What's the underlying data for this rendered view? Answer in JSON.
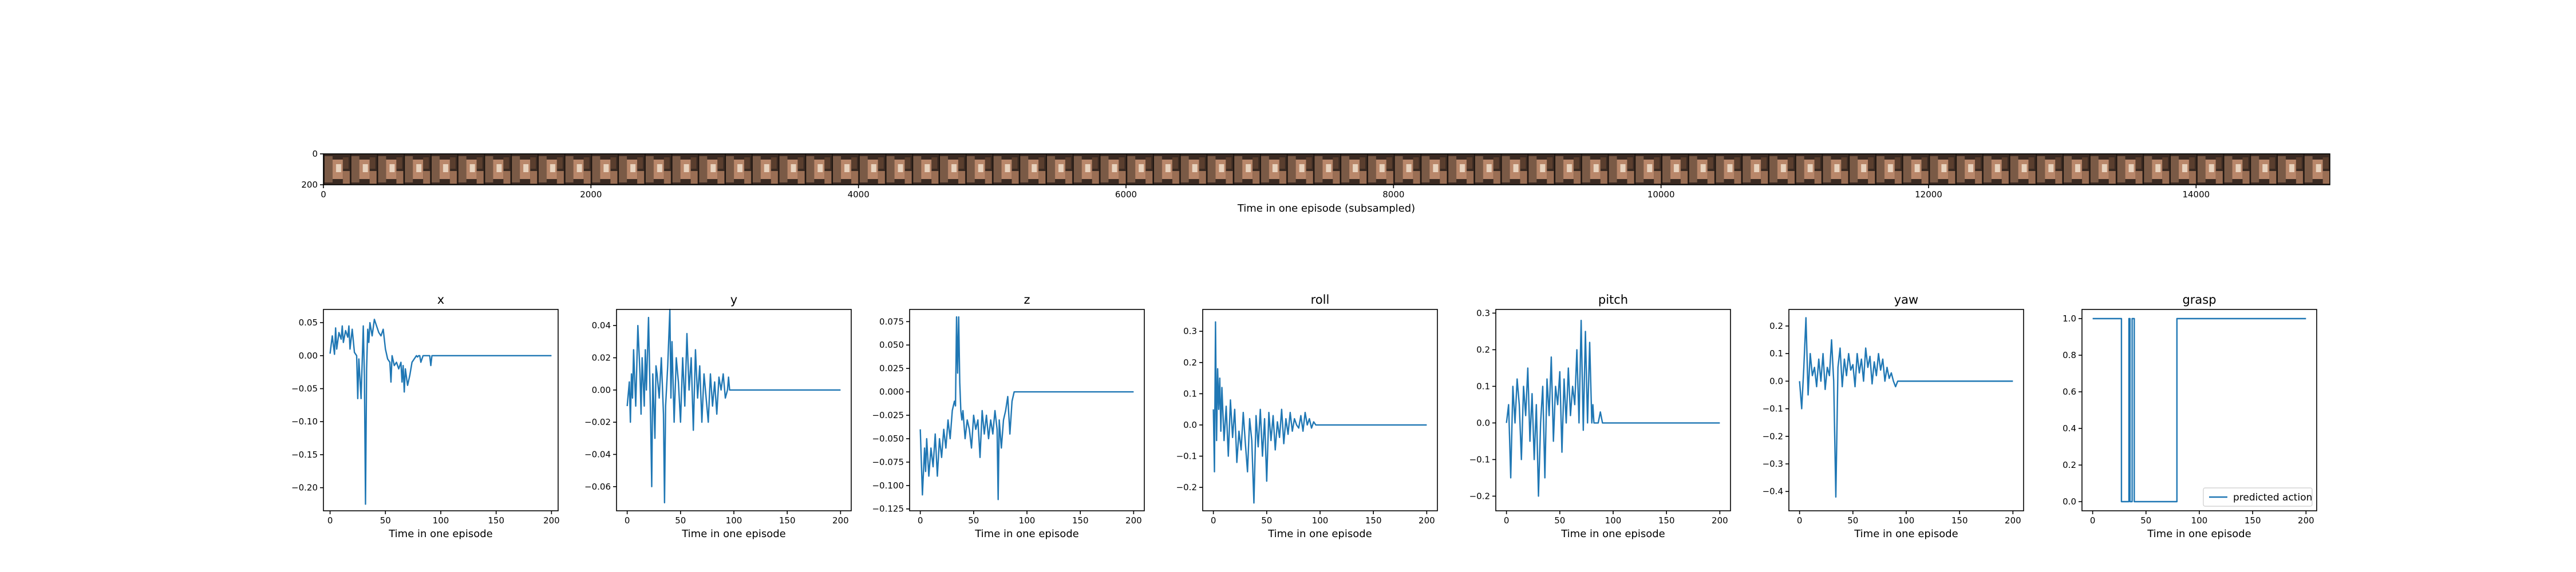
{
  "chart_data": [
    {
      "id": "frames",
      "type": "image-strip",
      "xlabel": "Time in one episode (subsampled)",
      "ylabel": "",
      "xlim": [
        0,
        15000
      ],
      "ylim": [
        200,
        0
      ],
      "xticks": [
        0,
        2000,
        4000,
        6000,
        8000,
        10000,
        12000,
        14000
      ],
      "yticks": [
        0,
        200
      ],
      "frame_count": 75,
      "frame_width": 200,
      "frame_colors": {
        "dark": "#2a1f1a",
        "mid": "#6b4a36",
        "light": "#b9876a",
        "highlight": "#e8d2bd"
      }
    },
    {
      "id": "x",
      "type": "line",
      "title": "x",
      "xlabel": "Time in one episode",
      "ylabel": "",
      "xlim": [
        -6,
        206
      ],
      "ylim": [
        -0.235,
        0.07
      ],
      "xticks": [
        0,
        50,
        100,
        150,
        200
      ],
      "yticks": [
        -0.2,
        -0.15,
        -0.1,
        -0.05,
        0.0,
        0.05
      ],
      "ytick_labels": [
        "−0.20",
        "−0.15",
        "−0.10",
        "−0.05",
        "0.00",
        "0.05"
      ],
      "x": [
        0,
        2,
        4,
        5,
        6,
        8,
        10,
        11,
        12,
        14,
        16,
        17,
        18,
        20,
        22,
        24,
        25,
        26,
        28,
        30,
        31,
        32,
        33,
        34,
        35,
        36,
        38,
        40,
        42,
        44,
        46,
        48,
        50,
        52,
        54,
        55,
        56,
        58,
        60,
        62,
        64,
        65,
        66,
        67,
        68,
        70,
        72,
        74,
        76,
        78,
        79,
        80,
        81,
        82,
        84,
        86,
        88,
        90,
        91,
        92,
        200
      ],
      "y": [
        0.003,
        0.03,
        0.002,
        0.042,
        0.01,
        0.035,
        0.025,
        0.045,
        0.02,
        0.038,
        0.028,
        0.045,
        0.01,
        0.04,
        0.005,
        0.0,
        -0.065,
        -0.005,
        -0.065,
        0.045,
        -0.03,
        -0.225,
        -0.02,
        0.04,
        0.02,
        0.05,
        0.03,
        0.055,
        0.045,
        0.035,
        0.03,
        0.04,
        0.01,
        -0.005,
        -0.01,
        -0.04,
        0.0,
        -0.015,
        -0.01,
        -0.02,
        -0.01,
        -0.04,
        -0.015,
        -0.055,
        -0.02,
        -0.045,
        -0.03,
        -0.01,
        -0.005,
        0.0,
        -0.002,
        0.0,
        0.0,
        -0.01,
        0.0,
        0.0,
        0.0,
        0.0,
        -0.015,
        0.0,
        0.0
      ],
      "color": "#1f77b4"
    },
    {
      "id": "y",
      "type": "line",
      "title": "y",
      "xlabel": "Time in one episode",
      "ylabel": "",
      "xlim": [
        -10,
        210
      ],
      "ylim": [
        -0.075,
        0.05
      ],
      "xticks": [
        0,
        50,
        100,
        150,
        200
      ],
      "yticks": [
        -0.06,
        -0.04,
        -0.02,
        0.0,
        0.02,
        0.04
      ],
      "ytick_labels": [
        "−0.06",
        "−0.04",
        "−0.02",
        "0.00",
        "0.02",
        "0.04"
      ],
      "x": [
        0,
        2,
        3,
        4,
        5,
        6,
        8,
        10,
        12,
        13,
        14,
        16,
        17,
        18,
        20,
        22,
        23,
        24,
        26,
        27,
        28,
        30,
        32,
        34,
        35,
        36,
        38,
        40,
        41,
        42,
        44,
        46,
        48,
        50,
        52,
        54,
        56,
        58,
        60,
        62,
        64,
        66,
        68,
        70,
        72,
        74,
        76,
        78,
        80,
        82,
        84,
        86,
        88,
        90,
        92,
        94,
        95,
        96,
        200
      ],
      "y": [
        -0.01,
        0.005,
        -0.02,
        0.01,
        -0.005,
        0.025,
        -0.01,
        0.04,
        0.01,
        -0.015,
        0.02,
        -0.01,
        0.025,
        0.0,
        0.045,
        -0.02,
        -0.06,
        0.01,
        -0.03,
        0.015,
        0.01,
        -0.005,
        0.02,
        -0.015,
        -0.07,
        -0.01,
        0.015,
        0.05,
        -0.005,
        0.03,
        -0.02,
        0.02,
        0.005,
        -0.02,
        0.02,
        -0.01,
        0.035,
        0.0,
        0.02,
        -0.025,
        0.025,
        -0.005,
        0.015,
        -0.02,
        0.01,
        -0.005,
        -0.02,
        0.01,
        -0.01,
        0.005,
        -0.015,
        0.008,
        0.0,
        0.01,
        -0.005,
        0.0,
        0.008,
        0.0,
        0.0
      ],
      "color": "#1f77b4"
    },
    {
      "id": "z",
      "type": "line",
      "title": "z",
      "xlabel": "Time in one episode",
      "ylabel": "",
      "xlim": [
        -10,
        210
      ],
      "ylim": [
        -0.127,
        0.088
      ],
      "xticks": [
        0,
        50,
        100,
        150,
        200
      ],
      "yticks": [
        -0.125,
        -0.1,
        -0.075,
        -0.05,
        -0.025,
        0.0,
        0.025,
        0.05,
        0.075
      ],
      "ytick_labels": [
        "−0.125",
        "−0.100",
        "−0.075",
        "−0.050",
        "−0.025",
        "0.000",
        "0.025",
        "0.050",
        "0.075"
      ],
      "x": [
        0,
        2,
        4,
        5,
        6,
        8,
        10,
        12,
        14,
        16,
        18,
        20,
        22,
        24,
        26,
        28,
        30,
        32,
        33,
        34,
        35,
        36,
        37,
        38,
        39,
        40,
        42,
        44,
        46,
        48,
        50,
        52,
        54,
        56,
        58,
        60,
        62,
        64,
        66,
        68,
        70,
        72,
        73,
        74,
        76,
        78,
        80,
        82,
        84,
        86,
        88,
        90,
        92,
        200
      ],
      "y": [
        -0.04,
        -0.11,
        -0.06,
        -0.085,
        -0.05,
        -0.09,
        -0.06,
        -0.08,
        -0.045,
        -0.09,
        -0.05,
        -0.07,
        -0.04,
        -0.06,
        -0.03,
        -0.05,
        -0.02,
        -0.01,
        -0.015,
        0.08,
        0.02,
        0.08,
        0.01,
        -0.02,
        -0.03,
        -0.02,
        -0.05,
        -0.03,
        -0.04,
        -0.06,
        -0.025,
        -0.04,
        -0.03,
        -0.07,
        -0.02,
        -0.045,
        -0.025,
        -0.05,
        -0.03,
        -0.045,
        -0.02,
        -0.04,
        -0.115,
        -0.03,
        -0.06,
        -0.03,
        -0.02,
        -0.005,
        -0.045,
        -0.01,
        0.0,
        0.0,
        0.0,
        0.0
      ],
      "color": "#1f77b4"
    },
    {
      "id": "roll",
      "type": "line",
      "title": "roll",
      "xlabel": "Time in one episode",
      "ylabel": "",
      "xlim": [
        -10,
        210
      ],
      "ylim": [
        -0.275,
        0.37
      ],
      "xticks": [
        0,
        50,
        100,
        150,
        200
      ],
      "yticks": [
        -0.2,
        -0.1,
        0.0,
        0.1,
        0.2,
        0.3
      ],
      "ytick_labels": [
        "−0.2",
        "−0.1",
        "0.0",
        "0.1",
        "0.2",
        "0.3"
      ],
      "x": [
        0,
        1,
        2,
        3,
        4,
        5,
        6,
        7,
        8,
        10,
        12,
        14,
        16,
        18,
        20,
        22,
        24,
        26,
        28,
        30,
        32,
        34,
        36,
        38,
        40,
        42,
        44,
        46,
        48,
        50,
        52,
        54,
        56,
        58,
        60,
        62,
        64,
        66,
        68,
        70,
        72,
        74,
        76,
        78,
        80,
        82,
        84,
        86,
        88,
        90,
        92,
        94,
        96,
        200
      ],
      "y": [
        0.05,
        -0.15,
        0.33,
        -0.05,
        0.18,
        0.05,
        0.15,
        -0.02,
        0.12,
        -0.05,
        0.06,
        -0.1,
        0.08,
        -0.04,
        0.05,
        -0.12,
        -0.02,
        -0.08,
        0.04,
        -0.06,
        -0.15,
        0.02,
        -0.05,
        -0.25,
        0.03,
        -0.07,
        0.05,
        -0.1,
        0.02,
        -0.18,
        0.04,
        -0.05,
        0.03,
        -0.08,
        0.01,
        -0.04,
        0.05,
        -0.06,
        0.02,
        -0.03,
        0.04,
        -0.02,
        0.02,
        0.0,
        -0.01,
        0.03,
        -0.02,
        0.04,
        0.0,
        0.02,
        -0.01,
        0.01,
        0.0,
        0.0
      ],
      "color": "#1f77b4"
    },
    {
      "id": "pitch",
      "type": "line",
      "title": "pitch",
      "xlabel": "Time in one episode",
      "ylabel": "",
      "xlim": [
        -10,
        210
      ],
      "ylim": [
        -0.24,
        0.31
      ],
      "xticks": [
        0,
        50,
        100,
        150,
        200
      ],
      "yticks": [
        -0.2,
        -0.1,
        0.0,
        0.1,
        0.2,
        0.3
      ],
      "ytick_labels": [
        "−0.2",
        "−0.1",
        "0.0",
        "0.1",
        "0.2",
        "0.3"
      ],
      "x": [
        0,
        2,
        4,
        6,
        8,
        10,
        12,
        14,
        16,
        18,
        20,
        22,
        24,
        26,
        28,
        30,
        32,
        34,
        36,
        38,
        40,
        42,
        44,
        46,
        48,
        50,
        52,
        54,
        56,
        58,
        60,
        62,
        64,
        66,
        68,
        70,
        72,
        74,
        76,
        78,
        80,
        81,
        82,
        84,
        86,
        88,
        90,
        92,
        200
      ],
      "y": [
        0.0,
        0.05,
        -0.15,
        0.1,
        0.0,
        0.12,
        0.05,
        -0.1,
        0.1,
        0.02,
        0.15,
        -0.05,
        0.08,
        -0.1,
        0.05,
        -0.2,
        0.0,
        0.1,
        -0.15,
        0.12,
        0.02,
        0.18,
        -0.05,
        0.1,
        0.05,
        0.14,
        -0.08,
        0.12,
        0.0,
        0.15,
        0.02,
        0.1,
        0.05,
        0.2,
        0.0,
        0.28,
        -0.02,
        0.25,
        0.0,
        0.22,
        0.0,
        0.05,
        0.0,
        0.0,
        0.0,
        0.03,
        0.0,
        0.0,
        0.0
      ],
      "color": "#1f77b4"
    },
    {
      "id": "yaw",
      "type": "line",
      "title": "yaw",
      "xlabel": "Time in one episode",
      "ylabel": "",
      "xlim": [
        -10,
        210
      ],
      "ylim": [
        -0.47,
        0.26
      ],
      "xticks": [
        0,
        50,
        100,
        150,
        200
      ],
      "yticks": [
        -0.4,
        -0.3,
        -0.2,
        -0.1,
        0.0,
        0.1,
        0.2
      ],
      "ytick_labels": [
        "−0.4",
        "−0.3",
        "−0.2",
        "−0.1",
        "0.0",
        "0.1",
        "0.2"
      ],
      "x": [
        0,
        2,
        4,
        6,
        8,
        10,
        12,
        14,
        16,
        18,
        20,
        22,
        24,
        26,
        28,
        30,
        32,
        34,
        36,
        38,
        40,
        42,
        44,
        46,
        48,
        50,
        52,
        54,
        56,
        58,
        60,
        62,
        64,
        66,
        68,
        70,
        72,
        74,
        76,
        78,
        80,
        82,
        84,
        86,
        88,
        90,
        92,
        200
      ],
      "y": [
        0.0,
        -0.1,
        0.05,
        0.23,
        -0.05,
        0.1,
        0.02,
        0.05,
        -0.02,
        0.08,
        0.0,
        0.1,
        -0.03,
        0.05,
        0.02,
        0.15,
        0.0,
        -0.42,
        0.05,
        0.12,
        -0.02,
        0.08,
        0.02,
        0.1,
        0.04,
        0.06,
        -0.02,
        0.1,
        0.03,
        0.08,
        0.0,
        0.12,
        0.05,
        0.09,
        -0.01,
        0.07,
        0.02,
        0.1,
        0.04,
        0.08,
        0.0,
        0.05,
        0.01,
        0.03,
        0.0,
        -0.02,
        0.0,
        0.0
      ],
      "color": "#1f77b4"
    },
    {
      "id": "grasp",
      "type": "line",
      "title": "grasp",
      "xlabel": "Time in one episode",
      "ylabel": "",
      "xlim": [
        -10,
        210
      ],
      "ylim": [
        -0.05,
        1.05
      ],
      "xticks": [
        0,
        50,
        100,
        150,
        200
      ],
      "yticks": [
        0.0,
        0.2,
        0.4,
        0.6,
        0.8,
        1.0
      ],
      "ytick_labels": [
        "0.0",
        "0.2",
        "0.4",
        "0.6",
        "0.8",
        "1.0"
      ],
      "x": [
        0,
        27,
        27,
        34,
        34,
        35,
        35,
        37,
        37,
        39,
        39,
        79,
        79,
        200
      ],
      "y": [
        1,
        1,
        0,
        0,
        1,
        1,
        0,
        0,
        1,
        1,
        0,
        0,
        1,
        1
      ],
      "color": "#1f77b4",
      "legend": {
        "label": "predicted action",
        "position": "lower-right"
      }
    }
  ]
}
